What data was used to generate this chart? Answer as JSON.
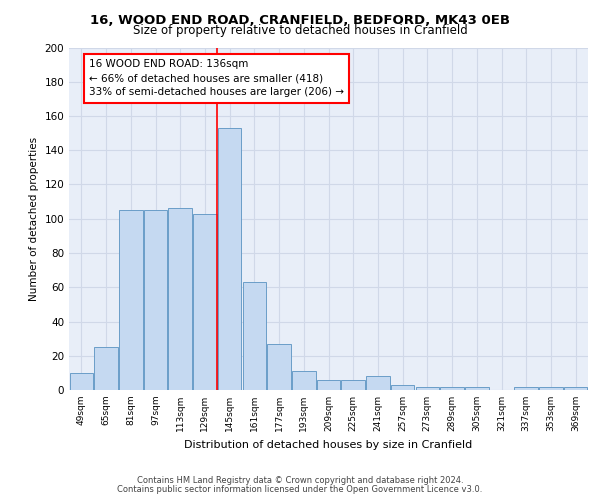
{
  "title_line1": "16, WOOD END ROAD, CRANFIELD, BEDFORD, MK43 0EB",
  "title_line2": "Size of property relative to detached houses in Cranfield",
  "xlabel": "Distribution of detached houses by size in Cranfield",
  "ylabel": "Number of detached properties",
  "categories": [
    "49sqm",
    "65sqm",
    "81sqm",
    "97sqm",
    "113sqm",
    "129sqm",
    "145sqm",
    "161sqm",
    "177sqm",
    "193sqm",
    "209sqm",
    "225sqm",
    "241sqm",
    "257sqm",
    "273sqm",
    "289sqm",
    "305sqm",
    "321sqm",
    "337sqm",
    "353sqm",
    "369sqm"
  ],
  "values": [
    10,
    25,
    105,
    105,
    106,
    103,
    153,
    63,
    27,
    11,
    6,
    6,
    8,
    3,
    2,
    2,
    2,
    0,
    2,
    2,
    2
  ],
  "bar_color": "#c5d9f1",
  "bar_edge_color": "#6a9dc8",
  "red_line_x": 5.5,
  "annotation_box": {
    "text_line1": "16 WOOD END ROAD: 136sqm",
    "text_line2": "← 66% of detached houses are smaller (418)",
    "text_line3": "33% of semi-detached houses are larger (206) →"
  },
  "ylim": [
    0,
    200
  ],
  "yticks": [
    0,
    20,
    40,
    60,
    80,
    100,
    120,
    140,
    160,
    180,
    200
  ],
  "grid_color": "#d0d8e8",
  "background_color": "#e8eef8",
  "footer_line1": "Contains HM Land Registry data © Crown copyright and database right 2024.",
  "footer_line2": "Contains public sector information licensed under the Open Government Licence v3.0."
}
